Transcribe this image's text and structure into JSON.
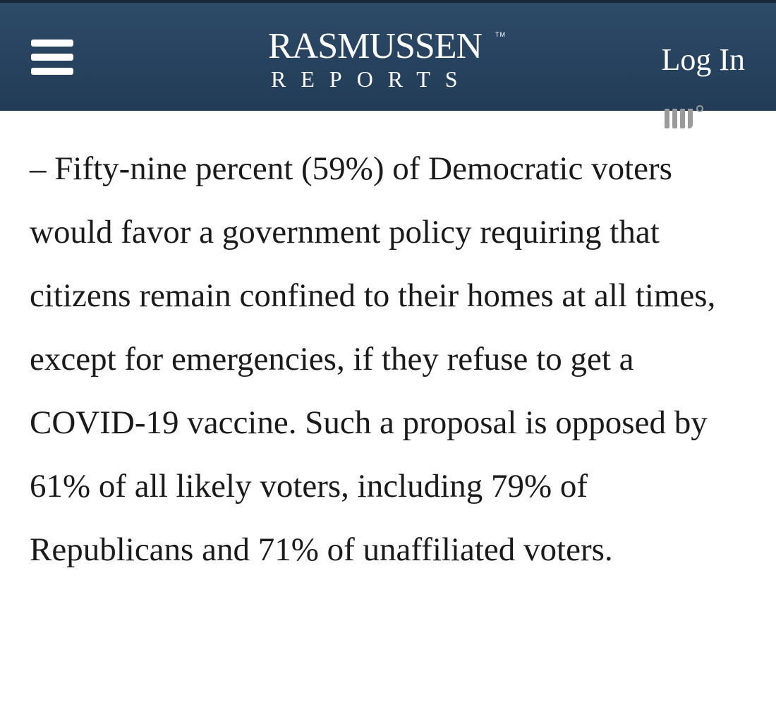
{
  "header": {
    "logo": {
      "main": "RASMUSSEN",
      "trademark": "TM",
      "sub": "REPORTS"
    },
    "login_label": "Log In"
  },
  "icons": {
    "menu": "hamburger-menu-icon",
    "watermark": "watermark-logo-icon"
  },
  "colors": {
    "header_background": "#2d4a67",
    "header_text": "#ffffff",
    "body_text": "#1a1a1a",
    "page_background": "#ffffff"
  },
  "article": {
    "paragraph": "– Fifty-nine percent (59%) of Democratic voters would favor a government policy requiring that citizens remain confined to their homes at all times, except for emergencies, if they refuse to get a COVID-19 vaccine. Such a proposal is opposed by 61% of all likely voters, including 79% of Republicans and 71% of unaffiliated voters."
  }
}
